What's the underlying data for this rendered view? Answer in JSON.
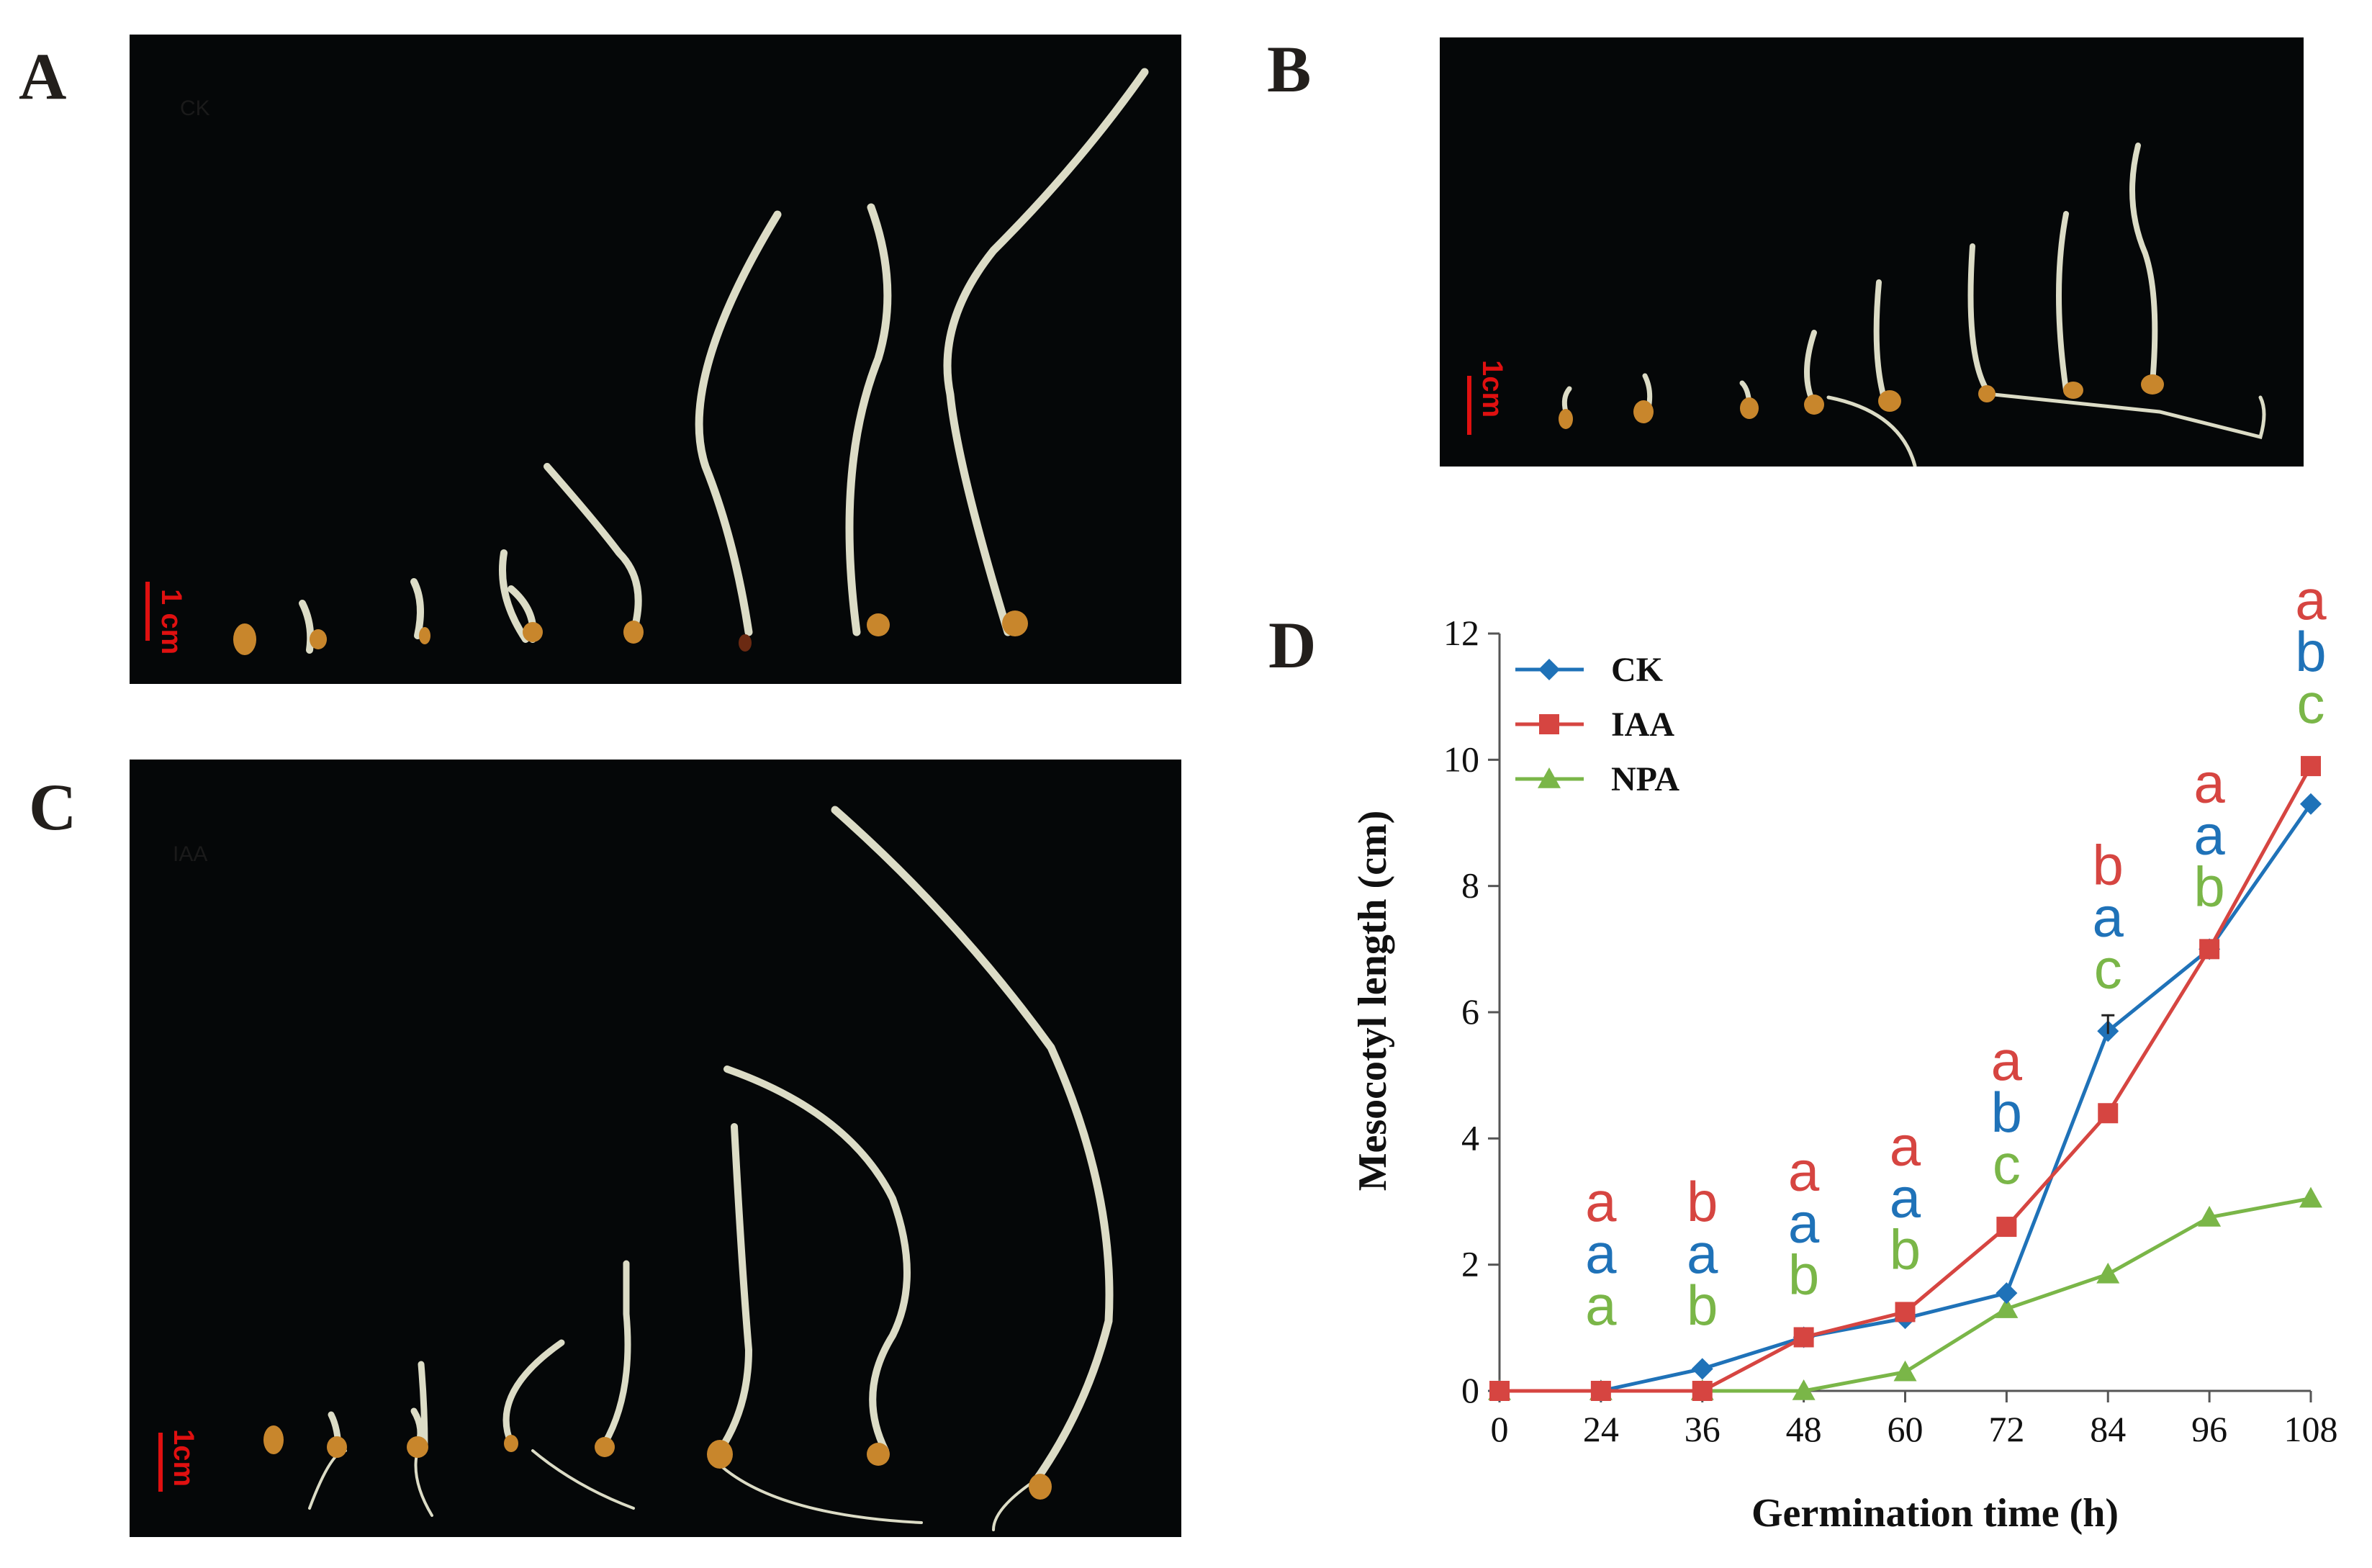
{
  "panels": {
    "a": {
      "letter": "A",
      "tag": "CK",
      "scale_label": "1 cm"
    },
    "b": {
      "letter": "B",
      "scale_label": "1cm"
    },
    "c": {
      "letter": "C",
      "tag": "IAA",
      "scale_label": "1cm"
    },
    "d": {
      "letter": "D"
    }
  },
  "colors": {
    "ck": "#1f72b8",
    "iaa": "#d64541",
    "npa": "#7ab648",
    "scale": "#e01010"
  },
  "chart_data": {
    "type": "line",
    "title": "",
    "xlabel": "Germination time (h)",
    "ylabel": "Mesocotyl length (cm)",
    "x": [
      0,
      24,
      36,
      48,
      60,
      72,
      84,
      96,
      108
    ],
    "ylim": [
      0,
      12
    ],
    "yticks": [
      0,
      2,
      4,
      6,
      8,
      10,
      12
    ],
    "legend_position": "top-left",
    "series": [
      {
        "name": "CK",
        "color": "#1f72b8",
        "marker": "diamond",
        "values": [
          0,
          0,
          0.35,
          0.85,
          1.15,
          1.55,
          5.7,
          7.0,
          9.3
        ]
      },
      {
        "name": "IAA",
        "color": "#d64541",
        "marker": "square",
        "values": [
          0,
          0,
          0,
          0.85,
          1.25,
          2.6,
          4.4,
          7.0,
          9.9
        ]
      },
      {
        "name": "NPA",
        "color": "#7ab648",
        "marker": "triangle",
        "values": [
          0,
          0,
          0,
          0,
          0.3,
          1.3,
          1.85,
          2.75,
          3.05
        ]
      }
    ],
    "significance_letters": [
      {
        "x": 24,
        "IAA": "a",
        "CK": "a",
        "NPA": "a"
      },
      {
        "x": 36,
        "IAA": "b",
        "CK": "a",
        "NPA": "b"
      },
      {
        "x": 48,
        "IAA": "a",
        "CK": "a",
        "NPA": "b"
      },
      {
        "x": 60,
        "IAA": "a",
        "CK": "a",
        "NPA": "b"
      },
      {
        "x": 72,
        "IAA": "a",
        "CK": "b",
        "NPA": "c"
      },
      {
        "x": 84,
        "IAA": "b",
        "CK": "a",
        "NPA": "c"
      },
      {
        "x": 96,
        "IAA": "a",
        "CK": "a",
        "NPA": "b"
      },
      {
        "x": 108,
        "IAA": "a",
        "CK": "b",
        "NPA": "c"
      }
    ]
  }
}
